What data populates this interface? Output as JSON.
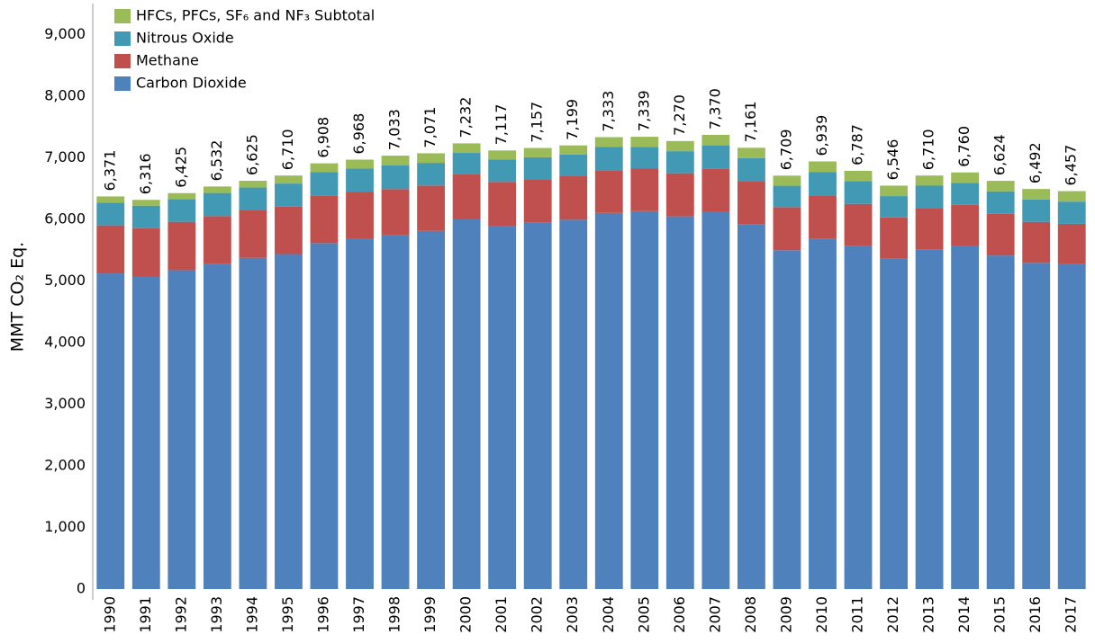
{
  "chart_data": {
    "type": "stacked_bar",
    "y_label": "MMT CO₂ Eq.",
    "categories": [
      "1990",
      "1991",
      "1992",
      "1993",
      "1994",
      "1995",
      "1996",
      "1997",
      "1998",
      "1999",
      "2000",
      "2001",
      "2002",
      "2003",
      "2004",
      "2005",
      "2006",
      "2007",
      "2008",
      "2009",
      "2010",
      "2011",
      "2012",
      "2013",
      "2014",
      "2015",
      "2016",
      "2017"
    ],
    "series": [
      {
        "name": "Carbon Dioxide",
        "color": "#4f81bd",
        "values": [
          5121,
          5071,
          5174,
          5281,
          5375,
          5436,
          5613,
          5683,
          5740,
          5812,
          5998,
          5887,
          5942,
          5993,
          6103,
          6132,
          6047,
          6121,
          5923,
          5497,
          5686,
          5565,
          5361,
          5514,
          5566,
          5412,
          5293,
          5270
        ]
      },
      {
        "name": "Methane",
        "color": "#c0504d",
        "values": [
          780,
          785,
          785,
          770,
          775,
          770,
          765,
          760,
          750,
          735,
          730,
          720,
          710,
          705,
          695,
          690,
          700,
          705,
          700,
          700,
          700,
          685,
          670,
          665,
          670,
          675,
          665,
          656
        ]
      },
      {
        "name": "Nitrous Oxide",
        "color": "#4299b3",
        "values": [
          370,
          365,
          366,
          376,
          365,
          374,
          390,
          380,
          383,
          369,
          349,
          365,
          355,
          351,
          375,
          352,
          358,
          374,
          368,
          347,
          378,
          367,
          345,
          366,
          354,
          367,
          364,
          361
        ]
      },
      {
        "name": "HFCs, PFCs, SF₆ and NF₃ Subtotal",
        "color": "#9bbb59",
        "values": [
          100,
          95,
          100,
          105,
          110,
          130,
          140,
          145,
          160,
          155,
          155,
          145,
          150,
          150,
          160,
          165,
          165,
          170,
          170,
          165,
          175,
          170,
          170,
          165,
          170,
          170,
          170,
          170
        ]
      }
    ],
    "totals": {
      "values": [
        6371,
        6316,
        6425,
        6532,
        6625,
        6710,
        6908,
        6968,
        7033,
        7071,
        7232,
        7117,
        7157,
        7199,
        7333,
        7339,
        7270,
        7370,
        7161,
        6709,
        6939,
        6787,
        6546,
        6710,
        6760,
        6624,
        6492,
        6457
      ],
      "value_labels": [
        "6,371",
        "6,316",
        "6,425",
        "6,532",
        "6,625",
        "6,710",
        "6,908",
        "6,968",
        "7,033",
        "7,071",
        "7,232",
        "7,117",
        "7,157",
        "7,199",
        "7,333",
        "7,339",
        "7,270",
        "7,370",
        "7,161",
        "6,709",
        "6,939",
        "6,787",
        "6,546",
        "6,710",
        "6,760",
        "6,624",
        "6,492",
        "6,457"
      ]
    },
    "ylim": [
      0,
      9500
    ],
    "yticks": [
      0,
      {
        "value": 1000,
        "label": "1,000"
      },
      {
        "value": 2000,
        "label": "2,000"
      },
      {
        "value": 3000,
        "label": "3,000"
      },
      {
        "value": 4000,
        "label": "4,000"
      },
      {
        "value": 5000,
        "label": "5,000"
      },
      {
        "value": 6000,
        "label": "6,000"
      },
      {
        "value": 7000,
        "label": "7,000"
      },
      {
        "value": 8000,
        "label": "8,000"
      },
      {
        "value": 9000,
        "label": "9,000"
      }
    ],
    "legend": "top-left",
    "legend_order": "reversed",
    "grid": false
  }
}
